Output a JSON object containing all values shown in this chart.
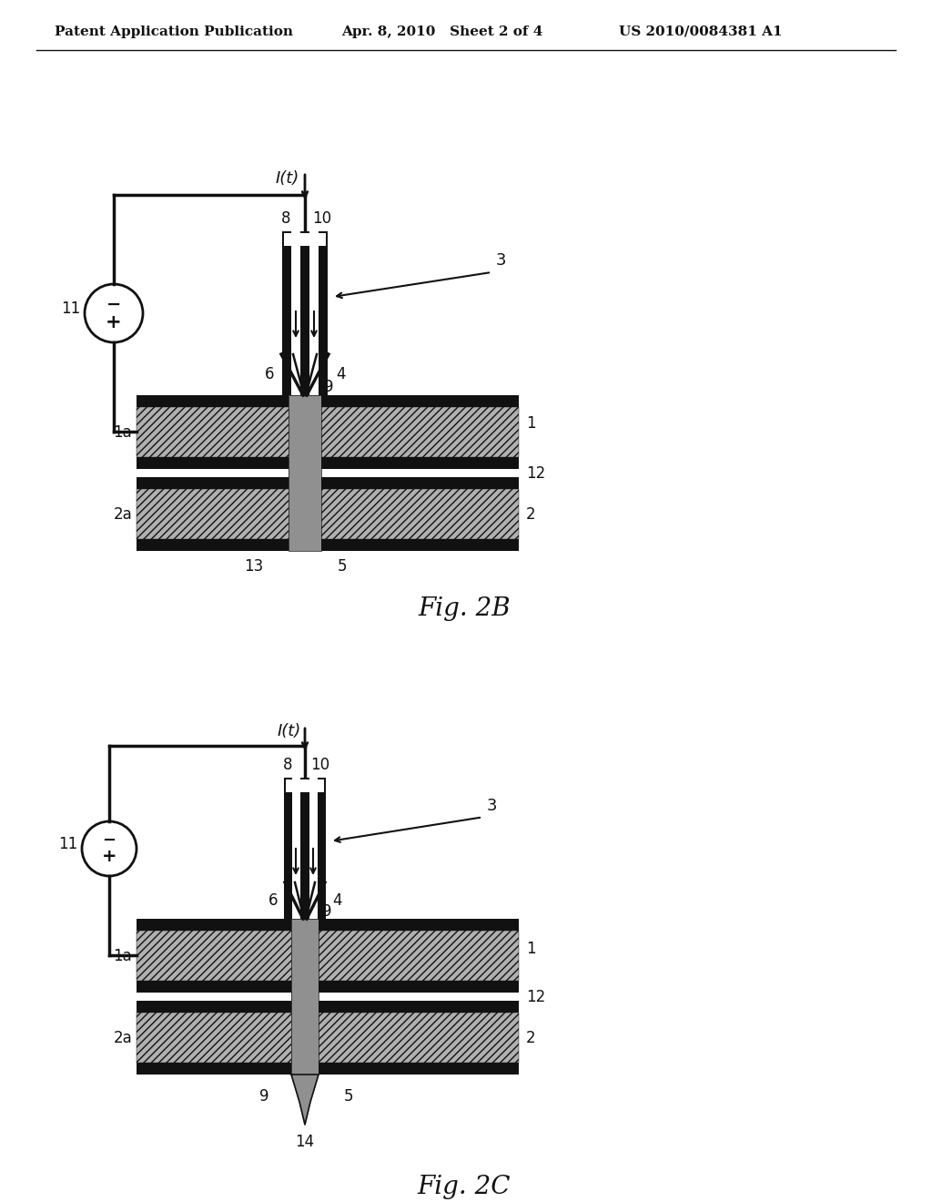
{
  "header_left": "Patent Application Publication",
  "header_mid": "Apr. 8, 2010   Sheet 2 of 4",
  "header_right": "US 2010/0084381 A1",
  "fig2b_label": "Fig. 2B",
  "fig2c_label": "Fig. 2C",
  "bg_color": "#ffffff",
  "dark_color": "#111111"
}
